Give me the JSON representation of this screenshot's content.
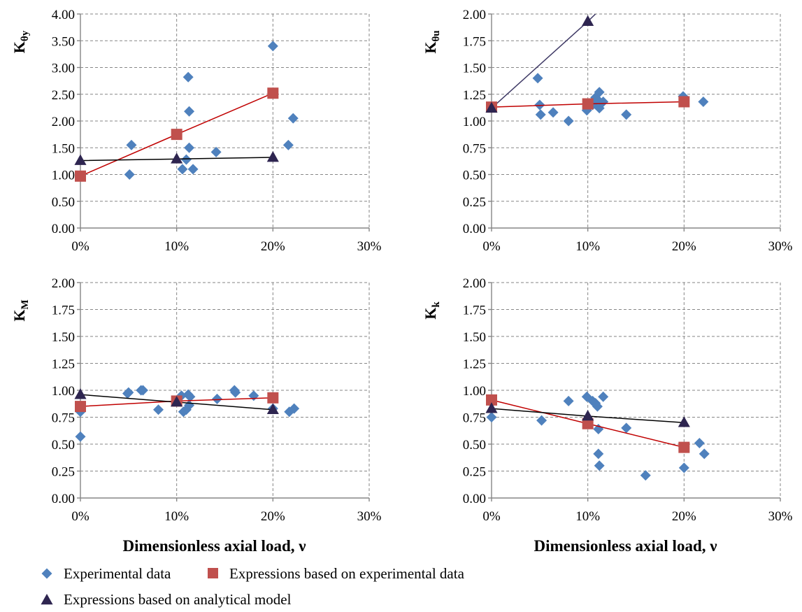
{
  "colors": {
    "experimental": "#4F81BD",
    "expr_experimental": "#C0504D",
    "expr_analytical": "#2E2550",
    "expr_experimental_line": "#C00000",
    "expr_analytical_line_top_right": "#3F3A66",
    "expr_analytical_line": "#000000"
  },
  "legend": {
    "experimental": "Experimental data",
    "expr_experimental": "Expressions based on experimental data",
    "expr_analytical": "Expressions based on analytical model"
  },
  "x_axis_label": "Dimensionless axial load, ν",
  "chart_data": [
    {
      "type": "scatter",
      "panel": "top-left",
      "ylabel_main": "K",
      "ylabel_sub": "θy",
      "xlabel": "",
      "xlim": [
        0,
        0.3
      ],
      "ylim": [
        0,
        4
      ],
      "x_ticks": [
        0,
        0.1,
        0.2,
        0.3
      ],
      "x_tick_labels": [
        "0%",
        "10%",
        "20%",
        "30%"
      ],
      "y_ticks": [
        0,
        0.5,
        1.0,
        1.5,
        2.0,
        2.5,
        3.0,
        3.5,
        4.0
      ],
      "y_tick_labels": [
        "0.00",
        "0.50",
        "1.00",
        "1.50",
        "2.00",
        "2.50",
        "3.00",
        "3.50",
        "4.00"
      ],
      "grid": true,
      "series": [
        {
          "name": "Experimental data",
          "marker": "diamond",
          "points": [
            [
              0.051,
              1.0
            ],
            [
              0.053,
              1.55
            ],
            [
              0.106,
              1.1
            ],
            [
              0.11,
              1.28
            ],
            [
              0.112,
              2.82
            ],
            [
              0.113,
              2.18
            ],
            [
              0.113,
              1.5
            ],
            [
              0.117,
              1.1
            ],
            [
              0.141,
              1.42
            ],
            [
              0.2,
              3.4
            ],
            [
              0.216,
              1.55
            ],
            [
              0.221,
              2.05
            ]
          ]
        },
        {
          "name": "Expressions based on experimental data",
          "marker": "square",
          "points": [
            [
              0,
              0.97
            ],
            [
              0.1,
              1.75
            ],
            [
              0.2,
              2.52
            ]
          ]
        },
        {
          "name": "Expressions based on analytical model",
          "marker": "triangle",
          "points": [
            [
              0,
              1.26
            ],
            [
              0.1,
              1.29
            ],
            [
              0.2,
              1.32
            ]
          ]
        }
      ]
    },
    {
      "type": "scatter",
      "panel": "top-right",
      "ylabel_main": "K",
      "ylabel_sub": "θu",
      "xlabel": "",
      "xlim": [
        0,
        0.3
      ],
      "ylim": [
        0,
        2
      ],
      "x_ticks": [
        0,
        0.1,
        0.2,
        0.3
      ],
      "x_tick_labels": [
        "0%",
        "10%",
        "20%",
        "30%"
      ],
      "y_ticks": [
        0,
        0.25,
        0.5,
        0.75,
        1.0,
        1.25,
        1.5,
        1.75,
        2.0
      ],
      "y_tick_labels": [
        "0.00",
        "0.25",
        "0.50",
        "0.75",
        "1.00",
        "1.25",
        "1.50",
        "1.75",
        "2.00"
      ],
      "grid": true,
      "series": [
        {
          "name": "Experimental data",
          "marker": "diamond",
          "points": [
            [
              0.048,
              1.4
            ],
            [
              0.05,
              1.15
            ],
            [
              0.051,
              1.06
            ],
            [
              0.064,
              1.08
            ],
            [
              0.08,
              1.0
            ],
            [
              0.099,
              1.1
            ],
            [
              0.105,
              1.15
            ],
            [
              0.108,
              1.22
            ],
            [
              0.11,
              1.2
            ],
            [
              0.112,
              1.27
            ],
            [
              0.112,
              1.12
            ],
            [
              0.116,
              1.18
            ],
            [
              0.14,
              1.06
            ],
            [
              0.199,
              1.23
            ],
            [
              0.22,
              1.18
            ]
          ]
        },
        {
          "name": "Expressions based on experimental data",
          "marker": "square",
          "points": [
            [
              0,
              1.13
            ],
            [
              0.1,
              1.16
            ],
            [
              0.2,
              1.18
            ]
          ]
        },
        {
          "name": "Expressions based on analytical model",
          "marker": "triangle",
          "points": [
            [
              0,
              1.12
            ],
            [
              0.1,
              1.93
            ]
          ],
          "line_extends_to": [
            0.108,
            2.0
          ]
        }
      ]
    },
    {
      "type": "scatter",
      "panel": "bottom-left",
      "ylabel_main": "K",
      "ylabel_sub": "M",
      "xlabel": "Dimensionless axial load, ν",
      "xlim": [
        0,
        0.3
      ],
      "ylim": [
        0,
        2
      ],
      "x_ticks": [
        0,
        0.1,
        0.2,
        0.3
      ],
      "x_tick_labels": [
        "0%",
        "10%",
        "20%",
        "30%"
      ],
      "y_ticks": [
        0,
        0.25,
        0.5,
        0.75,
        1.0,
        1.25,
        1.5,
        1.75,
        2.0
      ],
      "y_tick_labels": [
        "0.00",
        "0.25",
        "0.50",
        "0.75",
        "1.00",
        "1.25",
        "1.50",
        "1.75",
        "2.00"
      ],
      "grid": true,
      "series": [
        {
          "name": "Experimental data",
          "marker": "diamond",
          "points": [
            [
              0.0,
              0.8
            ],
            [
              0.0,
              0.57
            ],
            [
              0.049,
              0.97
            ],
            [
              0.05,
              0.98
            ],
            [
              0.063,
              1.0
            ],
            [
              0.065,
              1.0
            ],
            [
              0.081,
              0.82
            ],
            [
              0.101,
              0.9
            ],
            [
              0.105,
              0.95
            ],
            [
              0.107,
              0.8
            ],
            [
              0.11,
              0.82
            ],
            [
              0.112,
              0.96
            ],
            [
              0.113,
              0.86
            ],
            [
              0.114,
              0.94
            ],
            [
              0.142,
              0.92
            ],
            [
              0.16,
              1.0
            ],
            [
              0.161,
              0.98
            ],
            [
              0.18,
              0.95
            ],
            [
              0.2,
              0.83
            ],
            [
              0.217,
              0.8
            ],
            [
              0.222,
              0.83
            ]
          ]
        },
        {
          "name": "Expressions based on experimental data",
          "marker": "square",
          "points": [
            [
              0,
              0.85
            ],
            [
              0.1,
              0.9
            ],
            [
              0.2,
              0.93
            ]
          ]
        },
        {
          "name": "Expressions based on analytical model",
          "marker": "triangle",
          "points": [
            [
              0,
              0.96
            ],
            [
              0.1,
              0.89
            ],
            [
              0.2,
              0.82
            ]
          ]
        }
      ]
    },
    {
      "type": "scatter",
      "panel": "bottom-right",
      "ylabel_main": "K",
      "ylabel_sub": "k",
      "xlabel": "Dimensionless axial load, ν",
      "xlim": [
        0,
        0.3
      ],
      "ylim": [
        0,
        2
      ],
      "x_ticks": [
        0,
        0.1,
        0.2,
        0.3
      ],
      "x_tick_labels": [
        "0%",
        "10%",
        "20%",
        "30%"
      ],
      "y_ticks": [
        0,
        0.25,
        0.5,
        0.75,
        1.0,
        1.25,
        1.5,
        1.75,
        2.0
      ],
      "y_tick_labels": [
        "0.00",
        "0.25",
        "0.50",
        "0.75",
        "1.00",
        "1.25",
        "1.50",
        "1.75",
        "2.00"
      ],
      "grid": true,
      "series": [
        {
          "name": "Experimental data",
          "marker": "diamond",
          "points": [
            [
              0.0,
              0.75
            ],
            [
              0.052,
              0.72
            ],
            [
              0.08,
              0.9
            ],
            [
              0.099,
              0.94
            ],
            [
              0.105,
              0.9
            ],
            [
              0.108,
              0.88
            ],
            [
              0.11,
              0.85
            ],
            [
              0.111,
              0.64
            ],
            [
              0.111,
              0.41
            ],
            [
              0.112,
              0.3
            ],
            [
              0.116,
              0.94
            ],
            [
              0.14,
              0.65
            ],
            [
              0.16,
              0.21
            ],
            [
              0.2,
              0.28
            ],
            [
              0.216,
              0.51
            ],
            [
              0.221,
              0.41
            ]
          ]
        },
        {
          "name": "Expressions based on experimental data",
          "marker": "square",
          "points": [
            [
              0,
              0.91
            ],
            [
              0.1,
              0.69
            ],
            [
              0.2,
              0.47
            ]
          ]
        },
        {
          "name": "Expressions based on analytical model",
          "marker": "triangle",
          "points": [
            [
              0,
              0.83
            ],
            [
              0.1,
              0.76
            ],
            [
              0.2,
              0.7
            ]
          ]
        }
      ]
    }
  ]
}
